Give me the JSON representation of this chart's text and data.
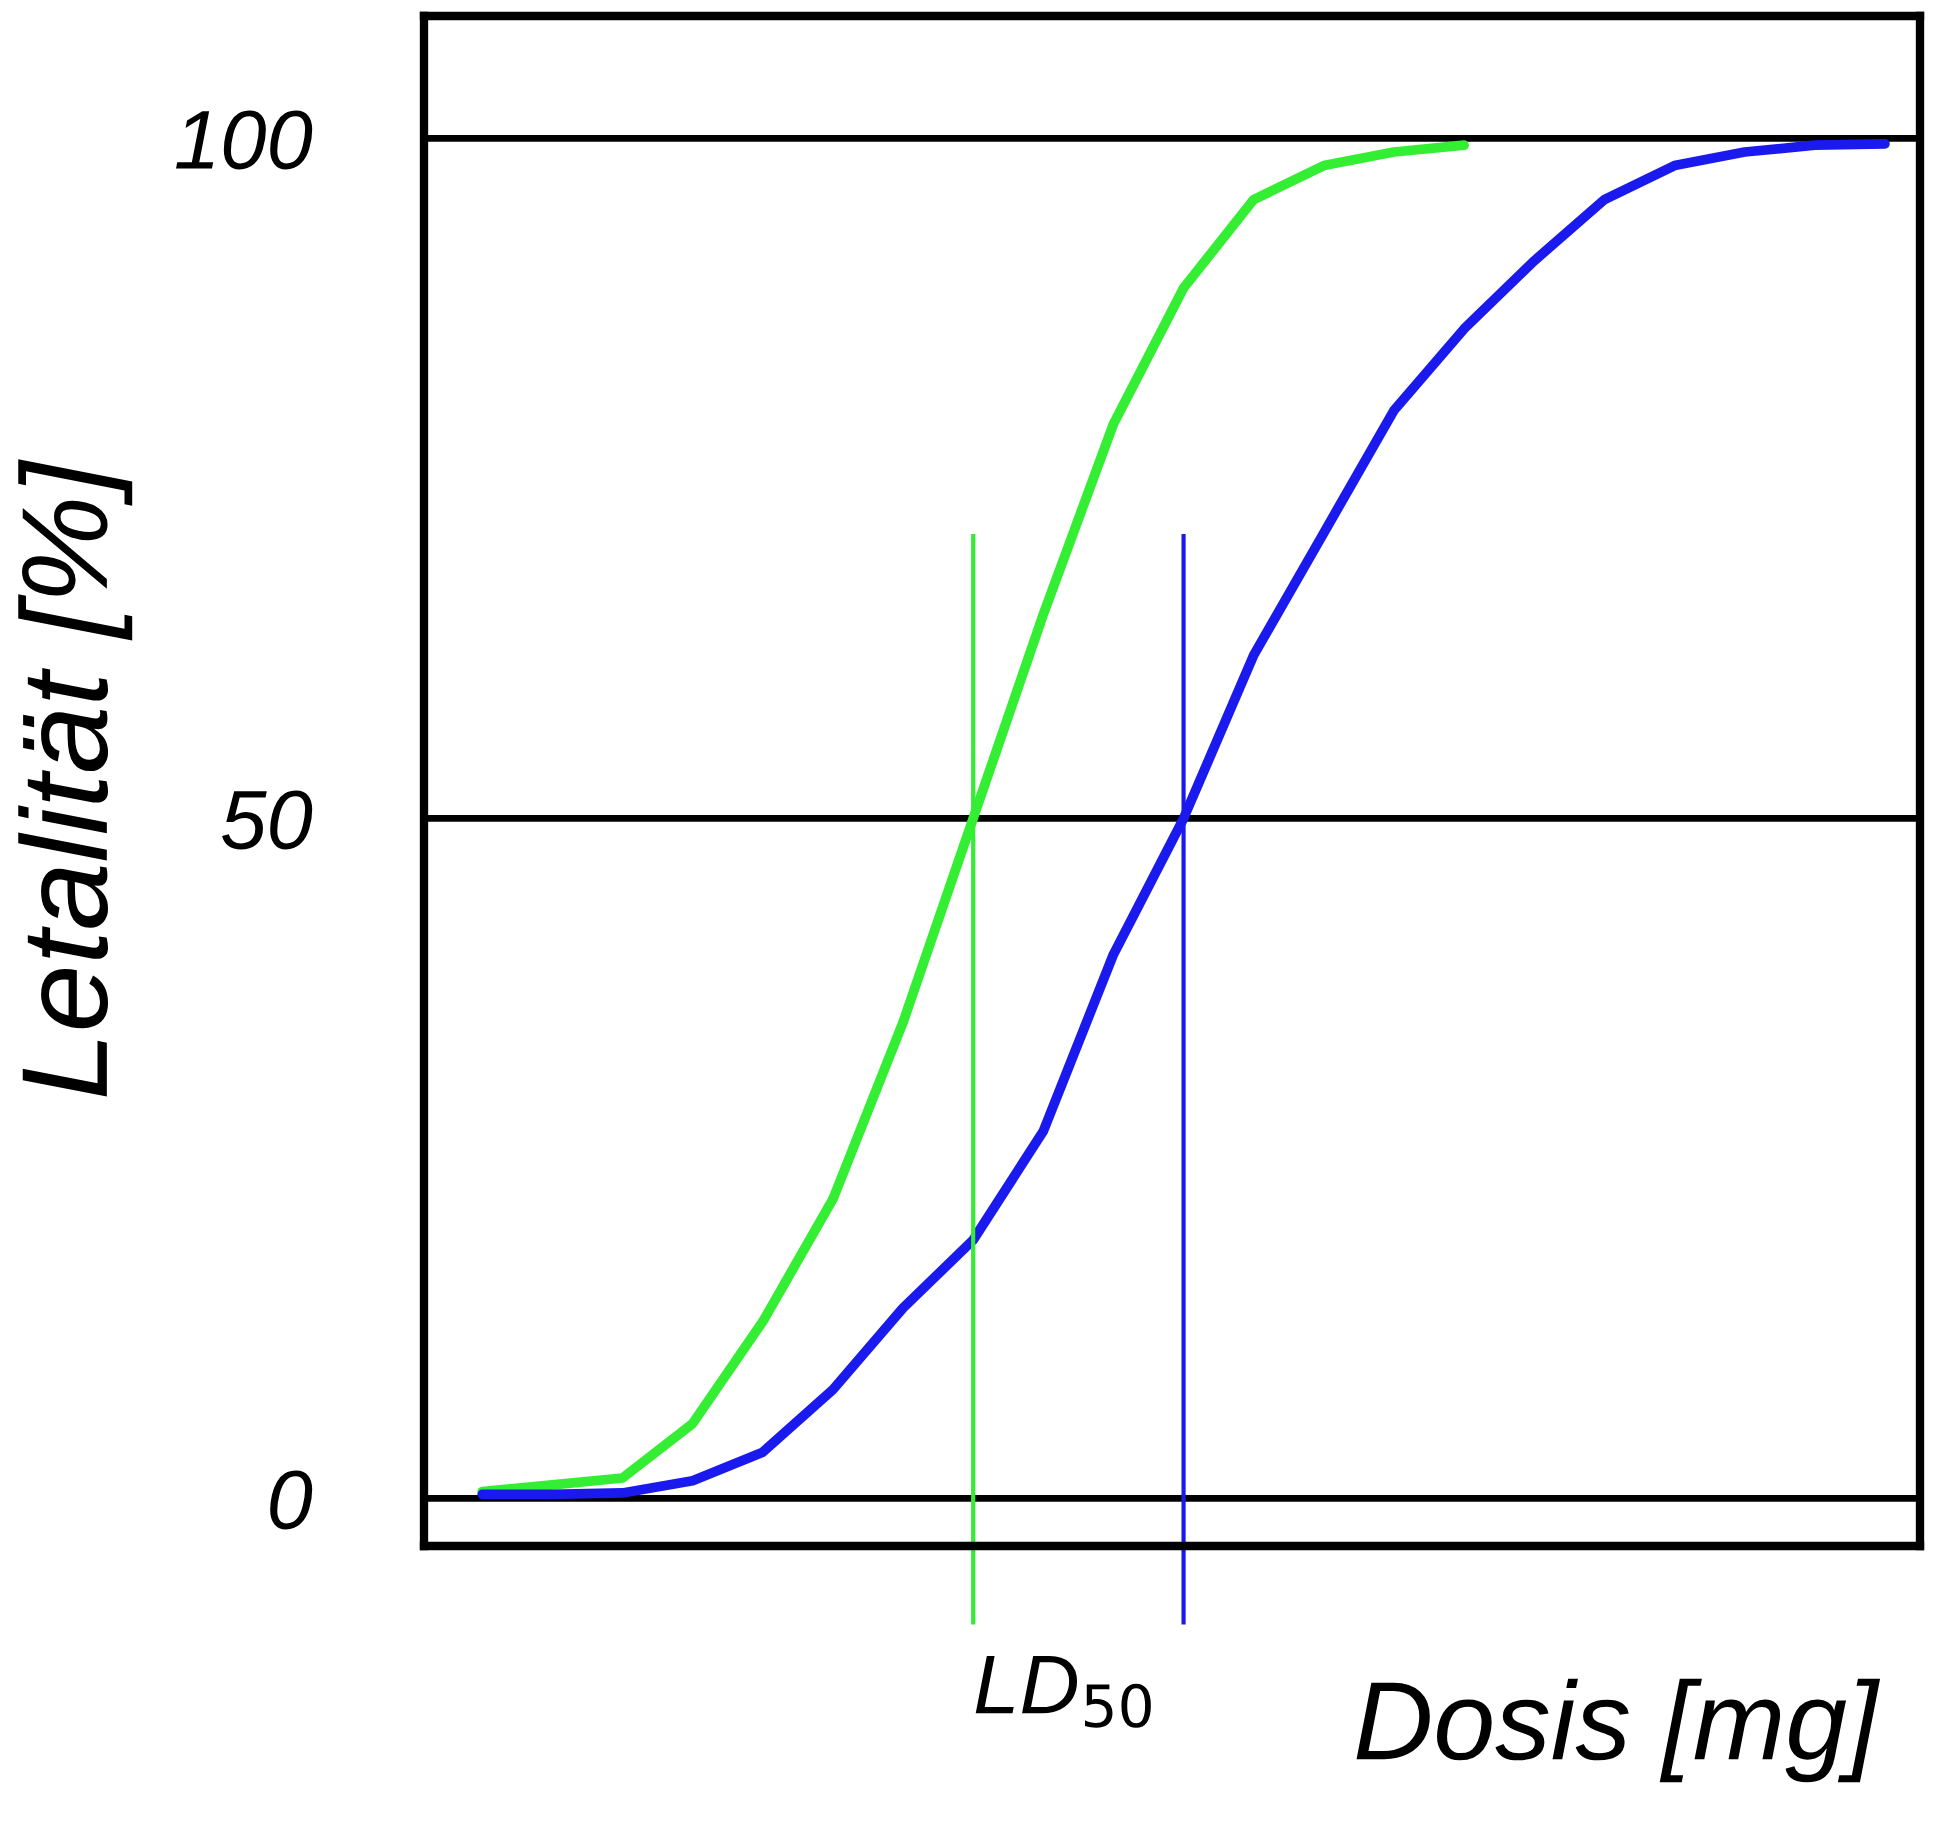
{
  "chart_data": {
    "type": "line",
    "ylabel": "Letalität [%]",
    "xlabel": "Dosis [mg]",
    "categories": [
      null,
      null,
      null,
      null,
      null,
      null,
      null,
      null,
      null,
      null,
      null,
      null,
      null,
      null,
      null,
      null,
      null,
      null,
      null,
      null,
      null
    ],
    "series": [
      {
        "color": "#33ee33",
        "values": [
          0.5,
          1,
          1.5,
          5.5,
          13,
          22,
          35,
          50,
          65,
          79,
          89,
          95.5,
          98,
          99,
          99.5,
          null,
          null,
          null,
          null,
          null,
          null
        ]
      },
      {
        "color": "#1a1aee",
        "values": [
          0.3,
          0.3,
          0.4,
          1.3,
          3.4,
          8,
          14,
          19,
          27,
          40,
          50,
          62,
          71,
          80,
          86,
          91,
          95.5,
          98,
          99,
          99.5,
          99.6
        ]
      }
    ],
    "ylim": [
      -3.5,
      109
    ],
    "yticks": [
      0,
      50,
      100
    ],
    "grid": "y",
    "legend": false,
    "marker": "none",
    "line_style": "solid",
    "annotations": [
      "LD$_{50}$"
    ]
  }
}
